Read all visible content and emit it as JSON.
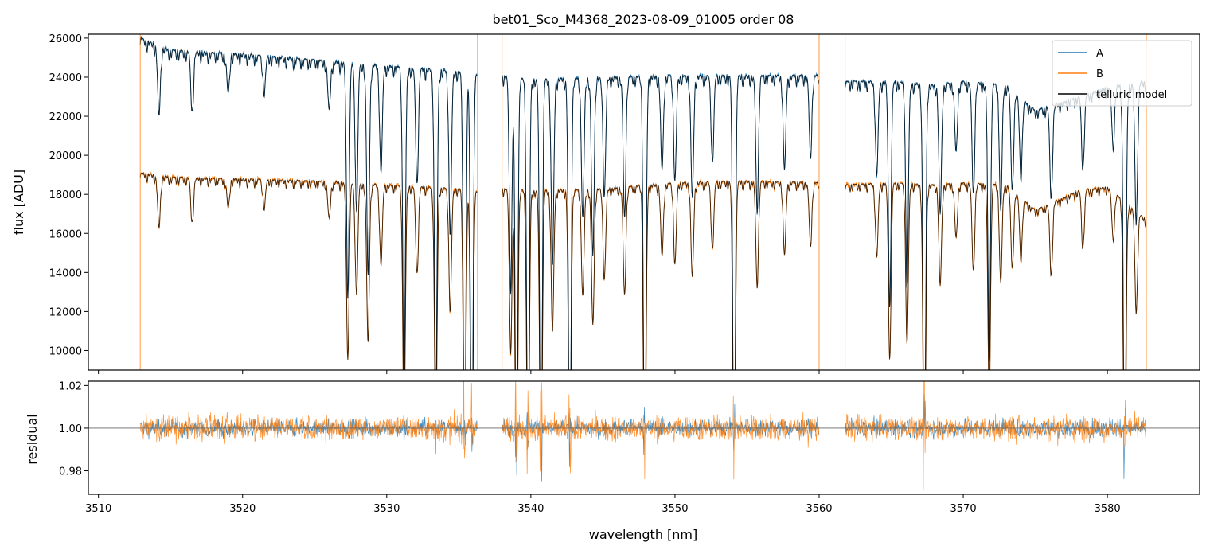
{
  "chart_data": [
    {
      "type": "line",
      "panel": "spectrum",
      "title": "bet01_Sco_M4368_2023-08-09_01005  order 08",
      "xlabel": "",
      "ylabel": "flux [ADU]",
      "xlim": [
        3509.3,
        3586.4
      ],
      "ylim": [
        9000,
        26200
      ],
      "xticks": [
        3510,
        3520,
        3530,
        3540,
        3550,
        3560,
        3570,
        3580
      ],
      "yticks": [
        10000,
        12000,
        14000,
        16000,
        18000,
        20000,
        22000,
        24000,
        26000
      ],
      "ytick_labels": [
        "10000",
        "12000",
        "14000",
        "16000",
        "18000",
        "20000",
        "22000",
        "24000",
        "26000"
      ],
      "legend": {
        "position": "top-right",
        "entries": [
          {
            "label": "A",
            "color": "#1f77b4"
          },
          {
            "label": "B",
            "color": "#ff7f0e"
          },
          {
            "label": "telluric model",
            "color": "#000000"
          }
        ]
      },
      "data_ranges": [
        [
          3512.9,
          3536.3
        ],
        [
          3538.0,
          3560.0
        ],
        [
          3561.8,
          3582.7
        ]
      ],
      "series": [
        {
          "name": "A",
          "color": "#1f77b4",
          "continuum_points": [
            [
              3513.0,
              26000
            ],
            [
              3515,
              25400
            ],
            [
              3520,
              25200
            ],
            [
              3525,
              24900
            ],
            [
              3530,
              24600
            ],
            [
              3535,
              24300
            ],
            [
              3536.2,
              24200
            ],
            [
              3538.0,
              24100
            ],
            [
              3540,
              23900
            ],
            [
              3545,
              24000
            ],
            [
              3550,
              24100
            ],
            [
              3555,
              24100
            ],
            [
              3560,
              24100
            ],
            [
              3561.8,
              23800
            ],
            [
              3565,
              23800
            ],
            [
              3568,
              23600
            ],
            [
              3570,
              23800
            ],
            [
              3573,
              23600
            ],
            [
              3575,
              22300
            ],
            [
              3578,
              23000
            ],
            [
              3580,
              23500
            ],
            [
              3582.7,
              23800
            ]
          ]
        },
        {
          "name": "B",
          "color": "#ff7f0e",
          "continuum_points": [
            [
              3513.0,
              19100
            ],
            [
              3515,
              18900
            ],
            [
              3520,
              18800
            ],
            [
              3525,
              18700
            ],
            [
              3530,
              18500
            ],
            [
              3535,
              18300
            ],
            [
              3536.2,
              18200
            ],
            [
              3538.0,
              18300
            ],
            [
              3540,
              18200
            ],
            [
              3545,
              18300
            ],
            [
              3550,
              18600
            ],
            [
              3555,
              18700
            ],
            [
              3560,
              18600
            ],
            [
              3561.8,
              18500
            ],
            [
              3565,
              18600
            ],
            [
              3568,
              18500
            ],
            [
              3570,
              18600
            ],
            [
              3573,
              18500
            ],
            [
              3575,
              17200
            ],
            [
              3578,
              18200
            ],
            [
              3580,
              18400
            ],
            [
              3582.7,
              16700
            ]
          ]
        },
        {
          "name": "telluric model",
          "color": "#000000"
        }
      ],
      "absorption_lines": [
        {
          "wl": 3514.2,
          "depth": 0.14
        },
        {
          "wl": 3516.5,
          "depth": 0.12
        },
        {
          "wl": 3519.0,
          "depth": 0.08
        },
        {
          "wl": 3521.5,
          "depth": 0.07
        },
        {
          "wl": 3526.0,
          "depth": 0.1
        },
        {
          "wl": 3527.3,
          "depth": 0.48
        },
        {
          "wl": 3527.9,
          "depth": 0.3
        },
        {
          "wl": 3528.7,
          "depth": 0.44
        },
        {
          "wl": 3529.6,
          "depth": 0.22
        },
        {
          "wl": 3531.2,
          "depth": 0.66
        },
        {
          "wl": 3532.1,
          "depth": 0.24
        },
        {
          "wl": 3533.4,
          "depth": 0.7
        },
        {
          "wl": 3534.4,
          "depth": 0.34
        },
        {
          "wl": 3535.4,
          "depth": 0.85
        },
        {
          "wl": 3535.9,
          "depth": 0.9
        },
        {
          "wl": 3538.6,
          "depth": 0.45
        },
        {
          "wl": 3539.0,
          "depth": 0.9
        },
        {
          "wl": 3539.8,
          "depth": 0.88
        },
        {
          "wl": 3540.7,
          "depth": 0.9
        },
        {
          "wl": 3541.5,
          "depth": 0.4
        },
        {
          "wl": 3542.7,
          "depth": 0.9
        },
        {
          "wl": 3543.6,
          "depth": 0.3
        },
        {
          "wl": 3544.3,
          "depth": 0.38
        },
        {
          "wl": 3545.1,
          "depth": 0.25
        },
        {
          "wl": 3546.5,
          "depth": 0.3
        },
        {
          "wl": 3547.9,
          "depth": 0.9
        },
        {
          "wl": 3549.1,
          "depth": 0.2
        },
        {
          "wl": 3550.0,
          "depth": 0.22
        },
        {
          "wl": 3551.2,
          "depth": 0.26
        },
        {
          "wl": 3552.6,
          "depth": 0.18
        },
        {
          "wl": 3554.1,
          "depth": 0.9
        },
        {
          "wl": 3555.7,
          "depth": 0.28
        },
        {
          "wl": 3557.6,
          "depth": 0.2
        },
        {
          "wl": 3559.4,
          "depth": 0.17
        },
        {
          "wl": 3564.0,
          "depth": 0.2
        },
        {
          "wl": 3564.9,
          "depth": 0.48
        },
        {
          "wl": 3566.1,
          "depth": 0.44
        },
        {
          "wl": 3567.3,
          "depth": 0.9
        },
        {
          "wl": 3568.4,
          "depth": 0.28
        },
        {
          "wl": 3569.5,
          "depth": 0.15
        },
        {
          "wl": 3570.7,
          "depth": 0.24
        },
        {
          "wl": 3571.8,
          "depth": 0.6
        },
        {
          "wl": 3572.6,
          "depth": 0.27
        },
        {
          "wl": 3573.4,
          "depth": 0.22
        },
        {
          "wl": 3574.0,
          "depth": 0.17
        },
        {
          "wl": 3576.1,
          "depth": 0.21
        },
        {
          "wl": 3578.3,
          "depth": 0.16
        },
        {
          "wl": 3580.4,
          "depth": 0.13
        },
        {
          "wl": 3581.2,
          "depth": 0.9
        },
        {
          "wl": 3582.0,
          "depth": 0.3
        }
      ]
    },
    {
      "type": "line",
      "panel": "residual",
      "xlabel": "wavelength [nm]",
      "ylabel": "residual",
      "xlim": [
        3509.3,
        3586.4
      ],
      "ylim": [
        0.969,
        1.022
      ],
      "xticks": [
        3510,
        3520,
        3530,
        3540,
        3550,
        3560,
        3570,
        3580
      ],
      "xtick_labels": [
        "3510",
        "3520",
        "3530",
        "3540",
        "3550",
        "3560",
        "3570",
        "3580"
      ],
      "yticks": [
        0.98,
        1.0,
        1.02
      ],
      "ytick_labels": [
        "0.98",
        "1.00",
        "1.02"
      ],
      "reference_line": 1.0,
      "series": [
        {
          "name": "A",
          "color": "#1f77b4",
          "typical_scatter": 0.004
        },
        {
          "name": "B",
          "color": "#ff7f0e",
          "typical_scatter": 0.006
        }
      ]
    }
  ]
}
